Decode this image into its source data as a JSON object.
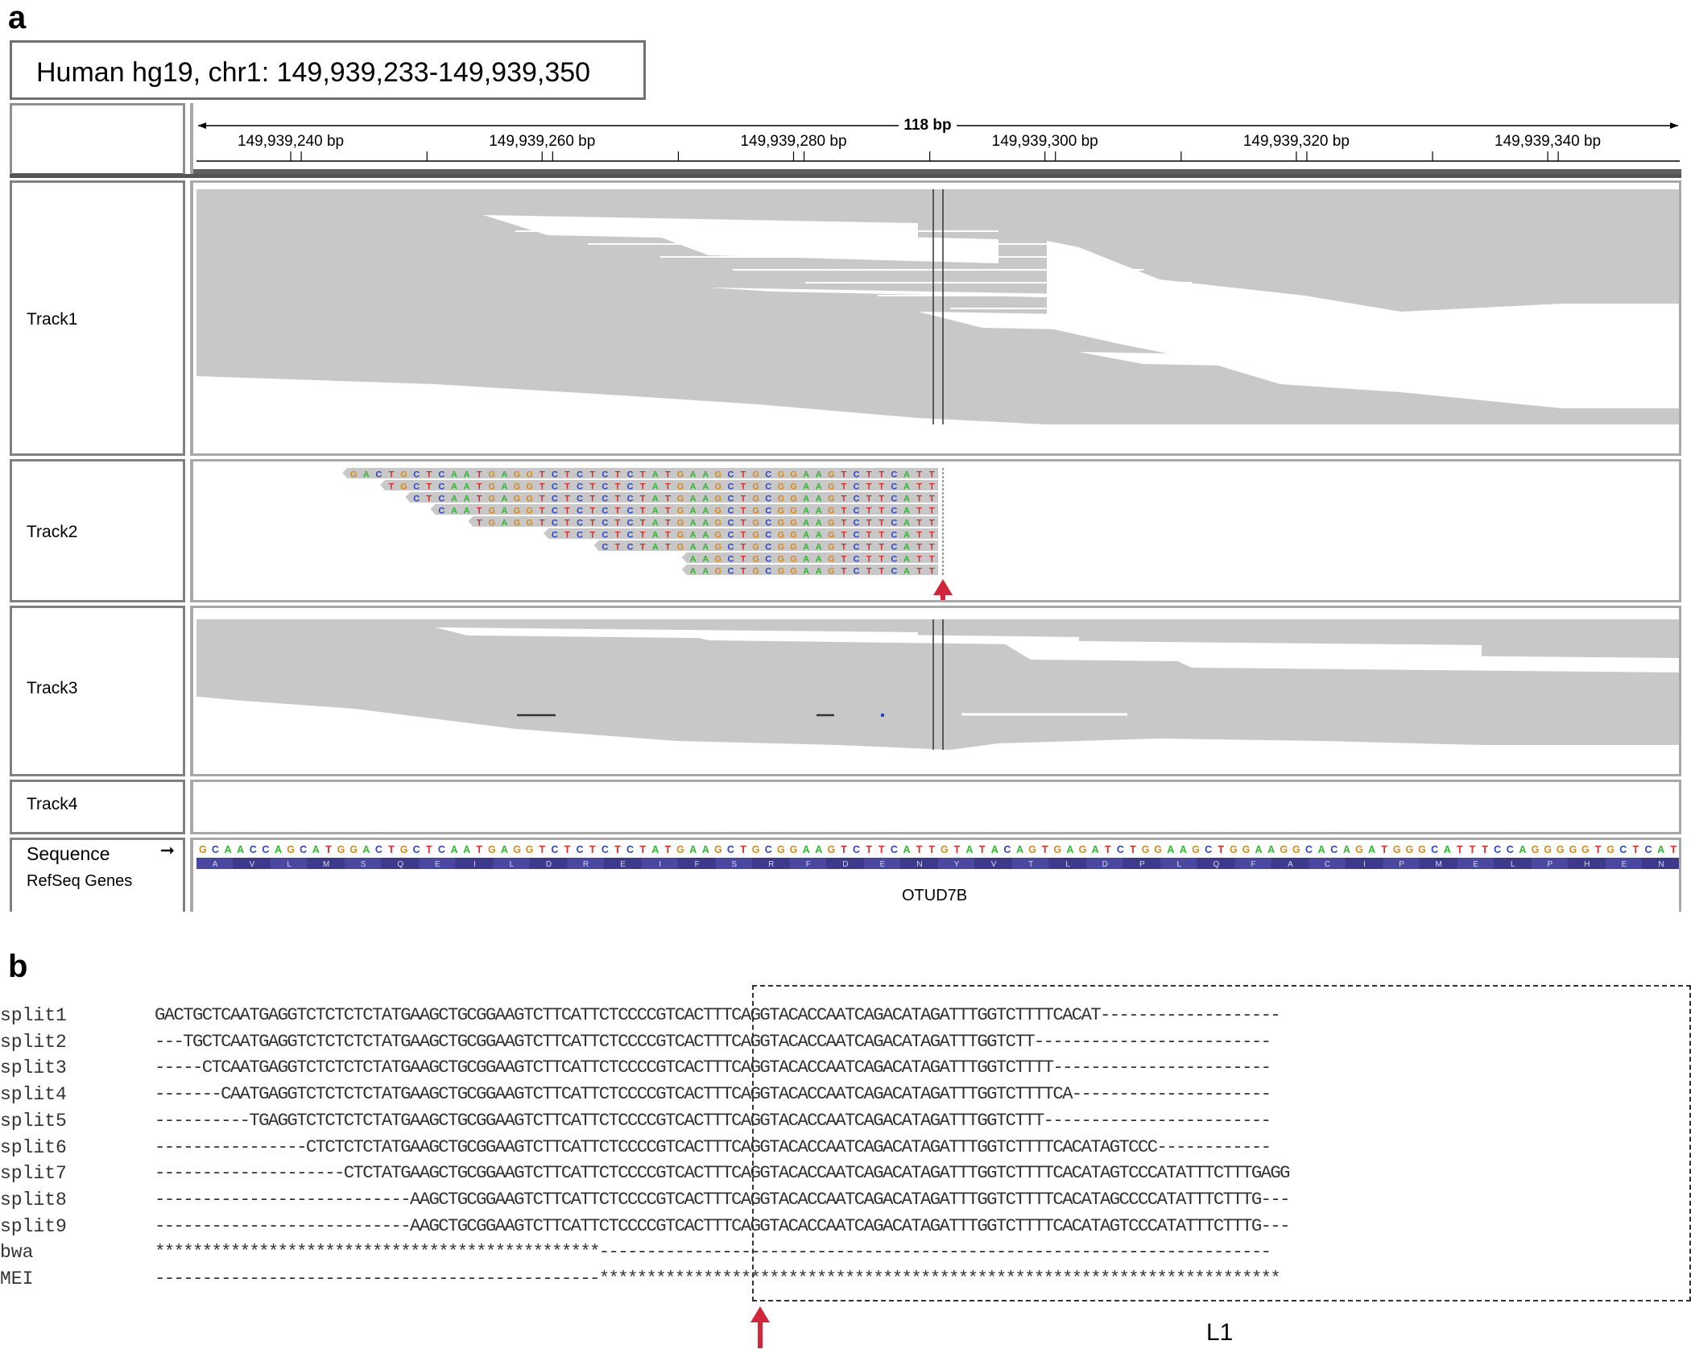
{
  "panel_a": {
    "letter": "a",
    "locus": "Human hg19, chr1: 149,939,233-149,939,350",
    "ruler": {
      "span": "118 bp",
      "ticks": [
        "149,939,240 bp",
        "149,939,260 bp",
        "149,939,280 bp",
        "149,939,300 bp",
        "149,939,320 bp",
        "149,939,340 bp"
      ]
    },
    "tracks": [
      "Track1",
      "Track2",
      "Track3",
      "Track4"
    ],
    "sequence_label": "Sequence",
    "refseq_label": "RefSeq Genes",
    "gene_name": "OTUD7B",
    "reference_sequence": "GCAACCAGCATGGACTGCTCAATGAGGTCTCTCTCTATGAAGCTGCGGAAGTCTTCATTGTATACAGTGAGATCTGGAAGCTGGAAGGCACAGATGGGCATTTCCAGGGGGTGCTCAT",
    "amino_acids": [
      "A",
      "V",
      "L",
      "M",
      "S",
      "Q",
      "E",
      "I",
      "L",
      "D",
      "R",
      "E",
      "I",
      "F",
      "S",
      "R",
      "F",
      "D",
      "E",
      "N",
      "Y",
      "V",
      "T",
      "L",
      "D",
      "P",
      "L",
      "Q",
      "F",
      "A",
      "C",
      "I",
      "P",
      "M",
      "E",
      "L",
      "P",
      "H",
      "E",
      "N"
    ],
    "split_reads": [
      "GACTGCTCAATGAGGTCTCTCTCTATGAAGCTGCGGAAGTCTTCATT",
      "TGCTCAATGAGGTCTCTCTCTATGAAGCTGCGGAAGTCTTCATT",
      "CTCAATGAGGTCTCTCTCTATGAAGCTGCGGAAGTCTTCATT",
      "CAATGAGGTCTCTCTCTATGAAGCTGCGGAAGTCTTCATT",
      "TGAGGTCTCTCTCTATGAAGCTGCGGAAGTCTTCATT",
      "CTCTCTCTATGAAGCTGCGGAAGTCTTCATT",
      "CTCTATGAAGCTGCGGAAGTCTTCATT",
      "AAGCTGCGGAAGTCTTCATT",
      "AAGCTGCGGAAGTCTTCATT"
    ],
    "base_colors": {
      "A": "#2eb82e",
      "C": "#2a45c8",
      "G": "#d58a1d",
      "T": "#d4302b"
    },
    "read_color": "#c8c8c8",
    "arrow_color": "#d2263a"
  },
  "panel_b": {
    "letter": "b",
    "rows": [
      {
        "name": "split1",
        "seq": "GACTGCTCAATGAGGTCTCTCTCTATGAAGCTGCGGAAGTCTTCATTCTCCCCGTCACTTTCAGGTACACCAATCAGACATAGATTTGGTCTTTTCACAT-------------------"
      },
      {
        "name": "split2",
        "seq": "---TGCTCAATGAGGTCTCTCTCTATGAAGCTGCGGAAGTCTTCATTCTCCCCGTCACTTTCAGGTACACCAATCAGACATAGATTTGGTCTT-------------------------"
      },
      {
        "name": "split3",
        "seq": "-----CTCAATGAGGTCTCTCTCTATGAAGCTGCGGAAGTCTTCATTCTCCCCGTCACTTTCAGGTACACCAATCAGACATAGATTTGGTCTTTT-----------------------"
      },
      {
        "name": "split4",
        "seq": "-------CAATGAGGTCTCTCTCTATGAAGCTGCGGAAGTCTTCATTCTCCCCGTCACTTTCAGGTACACCAATCAGACATAGATTTGGTCTTTTCA---------------------"
      },
      {
        "name": "split5",
        "seq": "----------TGAGGTCTCTCTCTATGAAGCTGCGGAAGTCTTCATTCTCCCCGTCACTTTCAGGTACACCAATCAGACATAGATTTGGTCTTT------------------------"
      },
      {
        "name": "split6",
        "seq": "----------------CTCTCTCTATGAAGCTGCGGAAGTCTTCATTCTCCCCGTCACTTTCAGGTACACCAATCAGACATAGATTTGGTCTTTTCACATAGTCCC------------"
      },
      {
        "name": "split7",
        "seq": "--------------------CTCTATGAAGCTGCGGAAGTCTTCATTCTCCCCGTCACTTTCAGGTACACCAATCAGACATAGATTTGGTCTTTTCACATAGTCCCATATTTCTTTGAGG"
      },
      {
        "name": "split8",
        "seq": "---------------------------AAGCTGCGGAAGTCTTCATTCTCCCCGTCACTTTCAGGTACACCAATCAGACATAGATTTGGTCTTTTCACATAGCCCCATATTTCTTTG---"
      },
      {
        "name": "split9",
        "seq": "---------------------------AAGCTGCGGAAGTCTTCATTCTCCCCGTCACTTTCAGGTACACCAATCAGACATAGATTTGGTCTTTTCACATAGTCCCATATTTCTTTG---"
      },
      {
        "name": "bwa",
        "seq": "***********************************************-----------------------------------------------------------------------"
      },
      {
        "name": "MEI",
        "seq": "-----------------------------------------------************************************************************************"
      }
    ],
    "box_label": "L1"
  }
}
